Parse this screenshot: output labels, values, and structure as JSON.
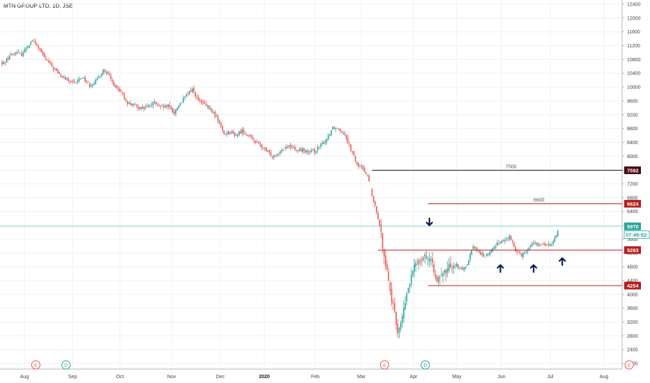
{
  "title": "MTN GROUP LTD, 1D, JSE",
  "chart_data": {
    "type": "candlestick",
    "symbol": "MTN GROUP LTD",
    "interval": "1D",
    "exchange": "JSE",
    "ylim": [
      1800,
      12500
    ],
    "y_ticks": [
      2000,
      2400,
      2800,
      3200,
      3600,
      4000,
      4400,
      4800,
      5200,
      5600,
      6000,
      6400,
      6800,
      7200,
      7600,
      8000,
      8400,
      8800,
      9200,
      9600,
      10000,
      10400,
      10800,
      11200,
      11600,
      12000,
      12400
    ],
    "x_ticks": [
      {
        "label": "Aug",
        "bold": false
      },
      {
        "label": "Sep",
        "bold": false
      },
      {
        "label": "Oct",
        "bold": false
      },
      {
        "label": "Nov",
        "bold": false
      },
      {
        "label": "Dec",
        "bold": false
      },
      {
        "label": "2020",
        "bold": true
      },
      {
        "label": "Feb",
        "bold": false
      },
      {
        "label": "Mar",
        "bold": false
      },
      {
        "label": "Apr",
        "bold": false
      },
      {
        "label": "May",
        "bold": false
      },
      {
        "label": "Jun",
        "bold": false
      },
      {
        "label": "Jul",
        "bold": false
      },
      {
        "label": "Aug",
        "bold": false
      }
    ],
    "close_path": [
      [
        0,
        10650
      ],
      [
        5,
        10900
      ],
      [
        9,
        11000
      ],
      [
        13,
        10950
      ],
      [
        17,
        11200
      ],
      [
        20,
        11350
      ],
      [
        24,
        11150
      ],
      [
        28,
        10850
      ],
      [
        33,
        10600
      ],
      [
        38,
        10350
      ],
      [
        43,
        10200
      ],
      [
        48,
        10100
      ],
      [
        53,
        10300
      ],
      [
        58,
        10050
      ],
      [
        63,
        10200
      ],
      [
        67,
        10500
      ],
      [
        71,
        10300
      ],
      [
        75,
        10000
      ],
      [
        79,
        9800
      ],
      [
        83,
        9550
      ],
      [
        88,
        9450
      ],
      [
        92,
        9400
      ],
      [
        97,
        9450
      ],
      [
        101,
        9550
      ],
      [
        105,
        9400
      ],
      [
        110,
        9450
      ],
      [
        114,
        9250
      ],
      [
        118,
        9550
      ],
      [
        122,
        9750
      ],
      [
        126,
        9950
      ],
      [
        130,
        9600
      ],
      [
        134,
        9500
      ],
      [
        139,
        9300
      ],
      [
        143,
        9050
      ],
      [
        147,
        8650
      ],
      [
        151,
        8700
      ],
      [
        155,
        8600
      ],
      [
        159,
        8750
      ],
      [
        163,
        8600
      ],
      [
        167,
        8450
      ],
      [
        171,
        8300
      ],
      [
        175,
        8150
      ],
      [
        179,
        8000
      ],
      [
        183,
        8100
      ],
      [
        187,
        8250
      ],
      [
        191,
        8300
      ],
      [
        195,
        8150
      ],
      [
        199,
        8200
      ],
      [
        203,
        8100
      ],
      [
        207,
        8150
      ],
      [
        211,
        8300
      ],
      [
        215,
        8500
      ],
      [
        219,
        8850
      ],
      [
        223,
        8800
      ],
      [
        227,
        8650
      ],
      [
        231,
        8200
      ],
      [
        235,
        7750
      ],
      [
        239,
        7650
      ],
      [
        242,
        7450
      ],
      [
        245,
        6850
      ],
      [
        249,
        6200
      ],
      [
        253,
        5200
      ],
      [
        256,
        4400
      ],
      [
        259,
        3600
      ],
      [
        262,
        2950
      ],
      [
        265,
        3300
      ],
      [
        268,
        4000
      ],
      [
        271,
        4500
      ],
      [
        274,
        4900
      ],
      [
        277,
        5050
      ],
      [
        280,
        5150
      ],
      [
        283,
        5000
      ],
      [
        286,
        4700
      ],
      [
        289,
        4400
      ],
      [
        293,
        4600
      ],
      [
        297,
        4850
      ],
      [
        301,
        4850
      ],
      [
        305,
        4700
      ],
      [
        308,
        4900
      ],
      [
        312,
        5400
      ],
      [
        316,
        5200
      ],
      [
        320,
        5100
      ],
      [
        324,
        5250
      ],
      [
        328,
        5500
      ],
      [
        332,
        5550
      ],
      [
        336,
        5650
      ],
      [
        340,
        5300
      ],
      [
        344,
        5150
      ],
      [
        348,
        5300
      ],
      [
        352,
        5500
      ],
      [
        356,
        5400
      ],
      [
        360,
        5450
      ],
      [
        364,
        5400
      ],
      [
        368,
        5850
      ]
    ],
    "levels": [
      {
        "label": "7500",
        "tag": "7592",
        "value": 7592,
        "color": "#1a1a1a",
        "tag_bg": "#4a0a14",
        "start": 245,
        "text_value": 7500
      },
      {
        "label": "6600",
        "tag": "6624",
        "value": 6624,
        "color": "#b71c1c",
        "tag_bg": "#b71c1c",
        "start": 282,
        "text_value": 6600
      },
      {
        "label": "",
        "tag": "5283",
        "value": 5283,
        "color": "#b71c1c",
        "tag_bg": "#b71c1c",
        "start": 249,
        "text_value": null
      },
      {
        "label": "",
        "tag": "4254",
        "value": 4254,
        "color": "#b71c1c",
        "tag_bg": "#b71c1c",
        "start": 282,
        "text_value": null
      }
    ],
    "current_price": {
      "value": 5970,
      "label": "5970",
      "countdown": "07:49:52",
      "color": "#26a69a"
    },
    "arrows": [
      {
        "direction": "down",
        "x": 283,
        "value": 6000
      },
      {
        "direction": "up",
        "x": 330,
        "value": 4850
      },
      {
        "direction": "up",
        "x": 352,
        "value": 4850
      },
      {
        "direction": "up",
        "x": 371,
        "value": 5050
      }
    ],
    "event_markers": [
      {
        "label": "E",
        "x": 20,
        "color": "#ef5350"
      },
      {
        "label": "D",
        "x": 40,
        "color": "#26a69a"
      },
      {
        "label": "E",
        "x": 251,
        "color": "#ef5350"
      },
      {
        "label": "D",
        "x": 278,
        "color": "#26a69a"
      },
      {
        "label": "E",
        "x": 413,
        "color": "#ef5350"
      }
    ],
    "colors": {
      "up": "#26a69a",
      "down": "#ef5350",
      "grid": "#eef0f3",
      "axis": "#b2b5be"
    }
  }
}
